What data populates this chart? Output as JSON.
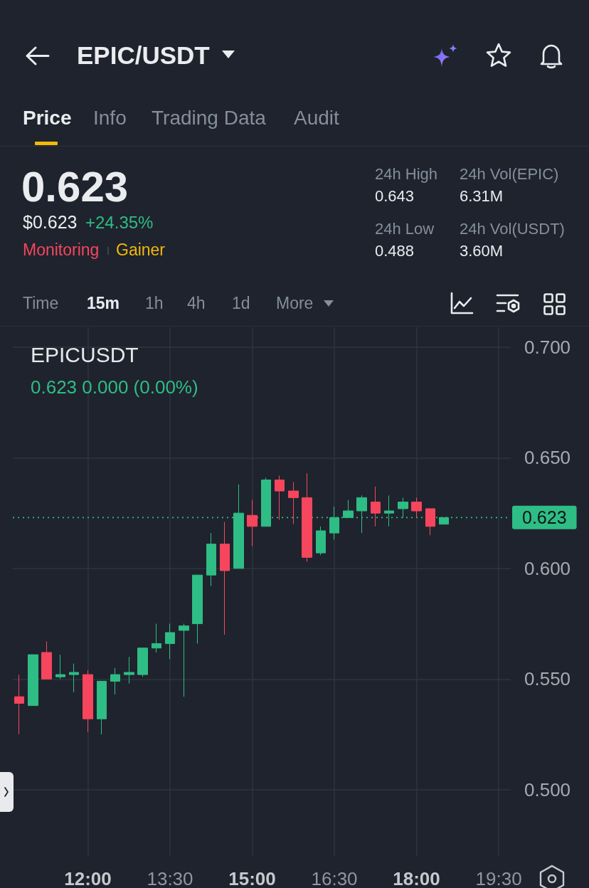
{
  "chart_data": [
    {
      "type": "other",
      "title": "EPIC/USDT",
      "annotations": [
        "Price",
        "Info",
        "Trading Data",
        "Audit",
        "0.623",
        "$0.623",
        "+24.35%",
        "Monitoring",
        "Gainer",
        "24h High",
        "0.643",
        "24h Vol(EPIC)",
        "6.31M",
        "24h Low",
        "0.488",
        "24h Vol(USDT)",
        "3.60M",
        "Time",
        "15m",
        "1h",
        "4h",
        "1d",
        "More"
      ]
    },
    {
      "type": "candlestick",
      "title": "EPICUSDT",
      "subtitle": "0.623 0.000 (0.00%)",
      "x": [
        10.75,
        11,
        11.25,
        11.5,
        11.75,
        12,
        12.25,
        12.5,
        12.75,
        13,
        13.25,
        13.5,
        13.75,
        14,
        14.25,
        14.5,
        14.75,
        15,
        15.25,
        15.5,
        15.75,
        16,
        16.25,
        16.5,
        16.75,
        17,
        17.25,
        17.5,
        17.75,
        18,
        18.25,
        18.5
      ],
      "ohlc": [
        [
          0.542,
          0.552,
          0.525,
          0.539
        ],
        [
          0.538,
          0.561,
          0.538,
          0.561
        ],
        [
          0.562,
          0.567,
          0.55,
          0.55
        ],
        [
          0.551,
          0.561,
          0.55,
          0.552
        ],
        [
          0.552,
          0.557,
          0.544,
          0.553
        ],
        [
          0.552,
          0.554,
          0.526,
          0.532
        ],
        [
          0.532,
          0.549,
          0.525,
          0.549
        ],
        [
          0.549,
          0.555,
          0.543,
          0.552
        ],
        [
          0.552,
          0.56,
          0.548,
          0.553
        ],
        [
          0.552,
          0.564,
          0.551,
          0.564
        ],
        [
          0.564,
          0.575,
          0.562,
          0.566
        ],
        [
          0.566,
          0.575,
          0.559,
          0.571
        ],
        [
          0.572,
          0.575,
          0.542,
          0.574
        ],
        [
          0.575,
          0.597,
          0.566,
          0.597
        ],
        [
          0.597,
          0.616,
          0.592,
          0.611
        ],
        [
          0.611,
          0.621,
          0.57,
          0.599
        ],
        [
          0.6,
          0.638,
          0.6,
          0.625
        ],
        [
          0.624,
          0.631,
          0.61,
          0.619
        ],
        [
          0.619,
          0.641,
          0.619,
          0.64
        ],
        [
          0.64,
          0.642,
          0.622,
          0.635
        ],
        [
          0.635,
          0.639,
          0.62,
          0.632
        ],
        [
          0.632,
          0.643,
          0.603,
          0.605
        ],
        [
          0.607,
          0.619,
          0.606,
          0.617
        ],
        [
          0.616,
          0.628,
          0.613,
          0.623
        ],
        [
          0.623,
          0.631,
          0.623,
          0.626
        ],
        [
          0.626,
          0.633,
          0.616,
          0.632
        ],
        [
          0.63,
          0.637,
          0.619,
          0.625
        ],
        [
          0.625,
          0.633,
          0.619,
          0.626
        ],
        [
          0.627,
          0.632,
          0.623,
          0.63
        ],
        [
          0.63,
          0.632,
          0.623,
          0.626
        ],
        [
          0.627,
          0.627,
          0.615,
          0.619
        ],
        [
          0.62,
          0.623,
          0.62,
          0.623
        ]
      ],
      "colors": [
        "#f6465d",
        "#2ebd85",
        "#f6465d",
        "#2ebd85",
        "#2ebd85",
        "#f6465d",
        "#2ebd85",
        "#2ebd85",
        "#2ebd85",
        "#2ebd85",
        "#2ebd85",
        "#2ebd85",
        "#2ebd85",
        "#2ebd85",
        "#2ebd85",
        "#f6465d",
        "#2ebd85",
        "#f6465d",
        "#2ebd85",
        "#f6465d",
        "#f6465d",
        "#f6465d",
        "#2ebd85",
        "#2ebd85",
        "#2ebd85",
        "#2ebd85",
        "#f6465d",
        "#2ebd85",
        "#2ebd85",
        "#f6465d",
        "#f6465d",
        "#2ebd85"
      ],
      "xlim": [
        10.63,
        19.72
      ],
      "xticks": [
        {
          "value": 12,
          "label": "12:00"
        },
        {
          "value": 13.5,
          "label": "13:30"
        },
        {
          "value": 15,
          "label": "15:00"
        },
        {
          "value": 16.5,
          "label": "16:30"
        },
        {
          "value": 18,
          "label": "18:00"
        },
        {
          "value": 19.5,
          "label": "19:30"
        }
      ],
      "ylim": [
        0.47,
        0.709
      ],
      "yticks": [
        {
          "value": 0.5,
          "label": "0.500"
        },
        {
          "value": 0.55,
          "label": "0.550"
        },
        {
          "value": 0.6,
          "label": "0.600"
        },
        {
          "value": 0.65,
          "label": "0.650"
        },
        {
          "value": 0.7,
          "label": "0.700"
        }
      ],
      "grid": true,
      "ref_lines": [
        {
          "axis": "y",
          "value": 0.623,
          "label": "0.623",
          "color": "#2ebd85",
          "line_style": "dotted"
        }
      ]
    }
  ]
}
